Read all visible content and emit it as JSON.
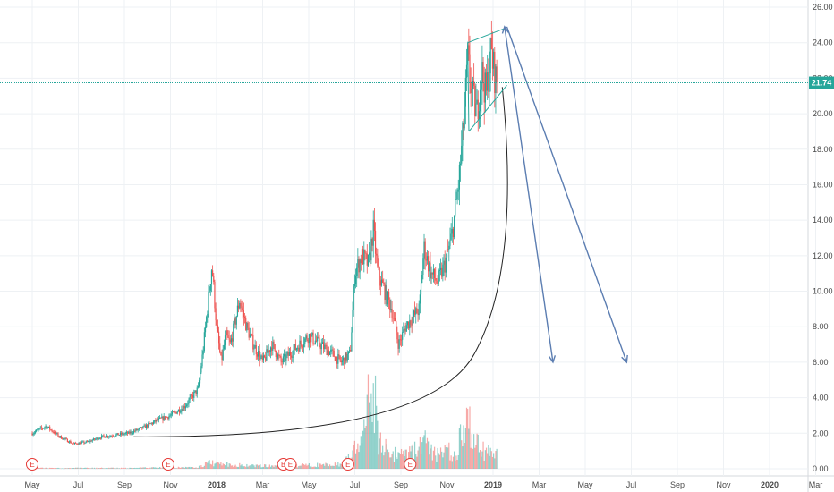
{
  "chart_data": {
    "type": "candlestick",
    "y_axis": {
      "ylim": [
        0,
        26
      ],
      "ticks": [
        "0.00",
        "2.00",
        "4.00",
        "6.00",
        "8.00",
        "10.00",
        "12.00",
        "14.00",
        "16.00",
        "18.00",
        "20.00",
        "22.00",
        "24.00",
        "26.00"
      ]
    },
    "x_axis": {
      "ticks": [
        {
          "label": "May",
          "bold": false
        },
        {
          "label": "Jul",
          "bold": false
        },
        {
          "label": "Sep",
          "bold": false
        },
        {
          "label": "Nov",
          "bold": false
        },
        {
          "label": "2018",
          "bold": true
        },
        {
          "label": "Mar",
          "bold": false
        },
        {
          "label": "May",
          "bold": false
        },
        {
          "label": "Jul",
          "bold": false
        },
        {
          "label": "Sep",
          "bold": false
        },
        {
          "label": "Nov",
          "bold": false
        },
        {
          "label": "2019",
          "bold": true
        },
        {
          "label": "Mar",
          "bold": false
        },
        {
          "label": "May",
          "bold": false
        },
        {
          "label": "Jul",
          "bold": false
        },
        {
          "label": "Sep",
          "bold": false
        },
        {
          "label": "Nov",
          "bold": false
        },
        {
          "label": "2020",
          "bold": true
        },
        {
          "label": "Mar",
          "bold": false
        }
      ]
    },
    "price_path": [
      {
        "t": 0.0,
        "v": 2.0
      },
      {
        "t": 0.6,
        "v": 2.4
      },
      {
        "t": 1.2,
        "v": 1.8
      },
      {
        "t": 1.8,
        "v": 1.4
      },
      {
        "t": 2.4,
        "v": 1.5
      },
      {
        "t": 3.0,
        "v": 1.8
      },
      {
        "t": 3.6,
        "v": 1.9
      },
      {
        "t": 4.2,
        "v": 2.0
      },
      {
        "t": 4.8,
        "v": 2.3
      },
      {
        "t": 5.4,
        "v": 2.7
      },
      {
        "t": 6.0,
        "v": 3.0
      },
      {
        "t": 6.6,
        "v": 3.5
      },
      {
        "t": 7.2,
        "v": 4.5
      },
      {
        "t": 7.4,
        "v": 6.5
      },
      {
        "t": 7.6,
        "v": 9.0
      },
      {
        "t": 7.8,
        "v": 11.5
      },
      {
        "t": 8.0,
        "v": 8.0
      },
      {
        "t": 8.2,
        "v": 6.0
      },
      {
        "t": 8.4,
        "v": 7.5
      },
      {
        "t": 8.6,
        "v": 7.0
      },
      {
        "t": 9.0,
        "v": 9.5
      },
      {
        "t": 9.3,
        "v": 8.0
      },
      {
        "t": 9.6,
        "v": 7.0
      },
      {
        "t": 10.0,
        "v": 6.0
      },
      {
        "t": 10.4,
        "v": 7.0
      },
      {
        "t": 10.8,
        "v": 6.0
      },
      {
        "t": 11.2,
        "v": 6.5
      },
      {
        "t": 11.6,
        "v": 7.0
      },
      {
        "t": 12.0,
        "v": 7.5
      },
      {
        "t": 12.5,
        "v": 7.0
      },
      {
        "t": 13.0,
        "v": 6.5
      },
      {
        "t": 13.4,
        "v": 6.0
      },
      {
        "t": 13.8,
        "v": 6.5
      },
      {
        "t": 14.0,
        "v": 11.0
      },
      {
        "t": 14.3,
        "v": 12.0
      },
      {
        "t": 14.6,
        "v": 11.5
      },
      {
        "t": 14.8,
        "v": 13.5
      },
      {
        "t": 15.0,
        "v": 11.0
      },
      {
        "t": 15.3,
        "v": 10.0
      },
      {
        "t": 15.6,
        "v": 9.0
      },
      {
        "t": 15.9,
        "v": 7.0
      },
      {
        "t": 16.2,
        "v": 8.0
      },
      {
        "t": 16.5,
        "v": 8.5
      },
      {
        "t": 16.8,
        "v": 9.0
      },
      {
        "t": 17.0,
        "v": 12.5
      },
      {
        "t": 17.3,
        "v": 11.0
      },
      {
        "t": 17.6,
        "v": 10.5
      },
      {
        "t": 17.9,
        "v": 11.5
      },
      {
        "t": 18.2,
        "v": 13.0
      },
      {
        "t": 18.5,
        "v": 16.0
      },
      {
        "t": 18.7,
        "v": 19.0
      },
      {
        "t": 18.9,
        "v": 23.0
      },
      {
        "t": 19.1,
        "v": 21.0
      },
      {
        "t": 19.3,
        "v": 20.0
      },
      {
        "t": 19.5,
        "v": 22.5
      },
      {
        "t": 19.7,
        "v": 21.0
      },
      {
        "t": 19.9,
        "v": 23.5
      },
      {
        "t": 20.1,
        "v": 22.0
      },
      {
        "t": 20.2,
        "v": 21.74
      }
    ],
    "volume_path": [
      {
        "t": 0.0,
        "v": 0.05
      },
      {
        "t": 4.0,
        "v": 0.05
      },
      {
        "t": 7.2,
        "v": 0.1
      },
      {
        "t": 7.6,
        "v": 0.4
      },
      {
        "t": 8.2,
        "v": 0.3
      },
      {
        "t": 9.5,
        "v": 0.2
      },
      {
        "t": 11.0,
        "v": 0.2
      },
      {
        "t": 13.5,
        "v": 0.3
      },
      {
        "t": 14.0,
        "v": 1.4
      },
      {
        "t": 14.4,
        "v": 2.2
      },
      {
        "t": 14.8,
        "v": 6.5
      },
      {
        "t": 15.0,
        "v": 2.0
      },
      {
        "t": 15.6,
        "v": 1.0
      },
      {
        "t": 16.2,
        "v": 0.8
      },
      {
        "t": 17.0,
        "v": 1.8
      },
      {
        "t": 17.5,
        "v": 1.0
      },
      {
        "t": 18.4,
        "v": 1.2
      },
      {
        "t": 18.9,
        "v": 3.0
      },
      {
        "t": 19.3,
        "v": 1.5
      },
      {
        "t": 20.2,
        "v": 0.8
      }
    ],
    "earnings_markers": [
      {
        "label": "E",
        "t": 0.0
      },
      {
        "label": "E",
        "t": 5.9
      },
      {
        "label": "E",
        "t": 10.9
      },
      {
        "label": "E",
        "t": 11.2
      },
      {
        "label": "E",
        "t": 13.7
      },
      {
        "label": "E",
        "t": 16.4
      }
    ],
    "last_price": {
      "value": 21.74,
      "label": "21.74"
    },
    "drawings": {
      "parabolic_curve": {
        "from": {
          "t": 4.4,
          "v": 1.8
        },
        "to": {
          "t": 20.4,
          "v": 21.5
        }
      },
      "triangle": [
        {
          "t": 18.9,
          "v": 24.0
        },
        {
          "t": 20.5,
          "v": 24.8
        },
        {
          "t": 18.95,
          "v": 19.0
        },
        {
          "t": 20.6,
          "v": 21.6
        }
      ],
      "arrows": [
        {
          "from": {
            "t": 20.5,
            "v": 24.9
          },
          "to": {
            "t": 22.6,
            "v": 6.0
          }
        },
        {
          "from": {
            "t": 20.6,
            "v": 24.9
          },
          "to": {
            "t": 25.8,
            "v": 6.0
          }
        }
      ]
    },
    "colors": {
      "up": "#26a69a",
      "down": "#ef5350",
      "price_line": "#26a69a",
      "drawing_arrow": "#5b7db1",
      "curve": "#222222",
      "triangle": "#26a69a",
      "grid": "#eef1f4"
    }
  }
}
